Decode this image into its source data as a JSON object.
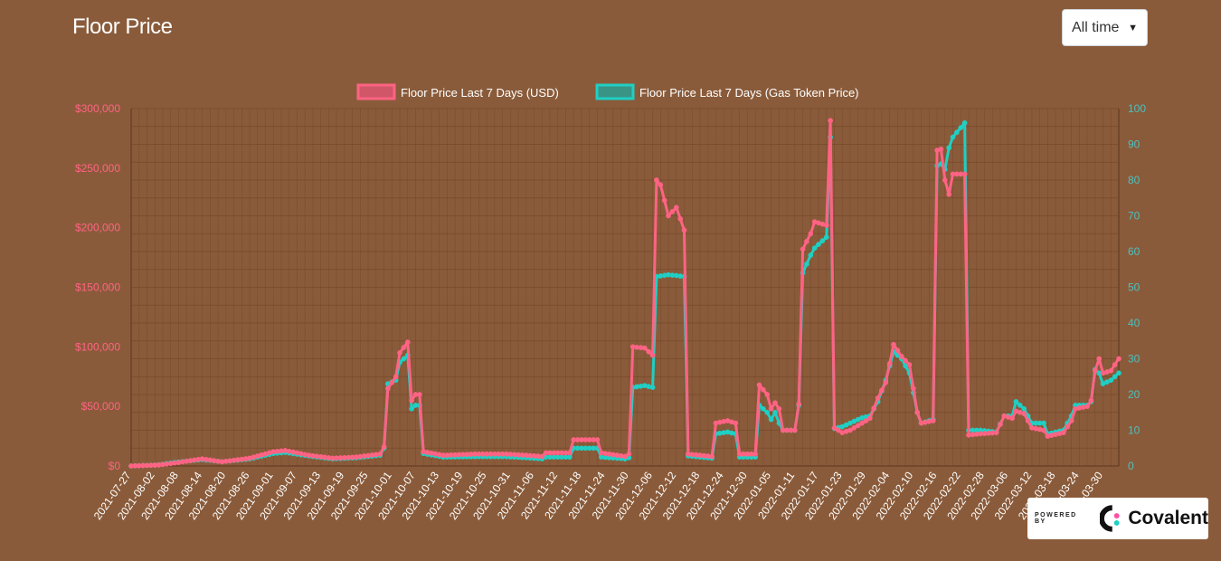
{
  "header": {
    "title": "Floor Price"
  },
  "range_select": {
    "value": "All time"
  },
  "badge": {
    "powered_by": "POWERED BY",
    "brand": "Covalent"
  },
  "colors": {
    "usd_line": "#ff6384",
    "gas_line": "#1fcfc4",
    "left_axis_text": "#ff6384",
    "right_axis_text": "#4bc0c0",
    "background": "#8a5b3a",
    "grid": "#6f4326"
  },
  "icons": {
    "select_chevron": "chevron-down-icon",
    "brand_logo": "covalent-logo-icon"
  },
  "chart_data": {
    "type": "line",
    "title": "",
    "legend_position": "top-center",
    "grid": true,
    "x_labels": [
      "2021-07-27",
      "2021-08-02",
      "2021-08-08",
      "2021-08-14",
      "2021-08-20",
      "2021-08-26",
      "2021-09-01",
      "2021-09-07",
      "2021-09-13",
      "2021-09-19",
      "2021-09-25",
      "2021-10-01",
      "2021-10-07",
      "2021-10-13",
      "2021-10-19",
      "2021-10-25",
      "2021-10-31",
      "2021-11-06",
      "2021-11-12",
      "2021-11-18",
      "2021-11-24",
      "2021-11-30",
      "2021-12-06",
      "2021-12-12",
      "2021-12-18",
      "2021-12-24",
      "2021-12-30",
      "2022-01-05",
      "2022-01-11",
      "2022-01-17",
      "2022-01-23",
      "2022-01-29",
      "2022-02-04",
      "2022-02-10",
      "2022-02-16",
      "2022-02-22",
      "2022-02-28",
      "2022-03-06",
      "2022-03-12",
      "2022-03-18",
      "2022-03-24",
      "2022-03-30"
    ],
    "left_axis": {
      "ylim": [
        0,
        300000
      ],
      "ticks": [
        "$0",
        "$50,000",
        "$100,000",
        "$150,000",
        "$200,000",
        "$250,000",
        "$300,000"
      ]
    },
    "right_axis": {
      "ylim": [
        0,
        100
      ],
      "ticks": [
        "0",
        "10",
        "20",
        "30",
        "40",
        "50",
        "60",
        "70",
        "80",
        "90",
        "100"
      ]
    },
    "series": [
      {
        "name": "Floor Price Last 7 Days (USD)",
        "axis": "left",
        "keypoints": [
          [
            "2021-07-27",
            0
          ],
          [
            "2021-08-03",
            800
          ],
          [
            "2021-08-07",
            2500
          ],
          [
            "2021-08-14",
            6000
          ],
          [
            "2021-08-19",
            3500
          ],
          [
            "2021-08-26",
            6500
          ],
          [
            "2021-09-01",
            12000
          ],
          [
            "2021-09-04",
            13000
          ],
          [
            "2021-09-10",
            9000
          ],
          [
            "2021-09-16",
            6500
          ],
          [
            "2021-09-22",
            7500
          ],
          [
            "2021-09-28",
            10000
          ],
          [
            "2021-09-29",
            16000
          ],
          [
            "2021-09-30",
            65000
          ],
          [
            "2021-10-02",
            75000
          ],
          [
            "2021-10-03",
            95000
          ],
          [
            "2021-10-05",
            104000
          ],
          [
            "2021-10-06",
            55000
          ],
          [
            "2021-10-07",
            60000
          ],
          [
            "2021-10-08",
            60000
          ],
          [
            "2021-10-09",
            12000
          ],
          [
            "2021-10-14",
            9000
          ],
          [
            "2021-10-22",
            10000
          ],
          [
            "2021-10-30",
            10000
          ],
          [
            "2021-11-04",
            9000
          ],
          [
            "2021-11-08",
            8000
          ],
          [
            "2021-11-09",
            11000
          ],
          [
            "2021-11-15",
            11000
          ],
          [
            "2021-11-16",
            22000
          ],
          [
            "2021-11-22",
            22000
          ],
          [
            "2021-11-23",
            11000
          ],
          [
            "2021-11-29",
            8000
          ],
          [
            "2021-11-30",
            10000
          ],
          [
            "2021-12-01",
            100000
          ],
          [
            "2021-12-04",
            99000
          ],
          [
            "2021-12-06",
            93000
          ],
          [
            "2021-12-07",
            240000
          ],
          [
            "2021-12-08",
            236000
          ],
          [
            "2021-12-10",
            210000
          ],
          [
            "2021-12-12",
            217000
          ],
          [
            "2021-12-14",
            198000
          ],
          [
            "2021-12-15",
            10000
          ],
          [
            "2021-12-21",
            8000
          ],
          [
            "2021-12-22",
            36000
          ],
          [
            "2021-12-25",
            38000
          ],
          [
            "2021-12-27",
            36000
          ],
          [
            "2021-12-28",
            10000
          ],
          [
            "2022-01-01",
            10000
          ],
          [
            "2022-01-02",
            68000
          ],
          [
            "2022-01-04",
            60000
          ],
          [
            "2022-01-05",
            48000
          ],
          [
            "2022-01-06",
            53000
          ],
          [
            "2022-01-07",
            48000
          ],
          [
            "2022-01-08",
            30000
          ],
          [
            "2022-01-11",
            30000
          ],
          [
            "2022-01-12",
            52000
          ],
          [
            "2022-01-13",
            182000
          ],
          [
            "2022-01-15",
            195000
          ],
          [
            "2022-01-16",
            205000
          ],
          [
            "2022-01-19",
            202000
          ],
          [
            "2022-01-20",
            290000
          ],
          [
            "2022-01-21",
            32000
          ],
          [
            "2022-01-23",
            28000
          ],
          [
            "2022-01-25",
            30000
          ],
          [
            "2022-01-28",
            36000
          ],
          [
            "2022-01-30",
            40000
          ],
          [
            "2022-02-01",
            57000
          ],
          [
            "2022-02-03",
            70000
          ],
          [
            "2022-02-05",
            102000
          ],
          [
            "2022-02-07",
            92000
          ],
          [
            "2022-02-09",
            85000
          ],
          [
            "2022-02-11",
            45000
          ],
          [
            "2022-02-12",
            36000
          ],
          [
            "2022-02-15",
            38000
          ],
          [
            "2022-02-16",
            265000
          ],
          [
            "2022-02-17",
            266000
          ],
          [
            "2022-02-18",
            240000
          ],
          [
            "2022-02-19",
            228000
          ],
          [
            "2022-02-20",
            245000
          ],
          [
            "2022-02-23",
            245000
          ],
          [
            "2022-02-24",
            26000
          ],
          [
            "2022-02-27",
            27000
          ],
          [
            "2022-03-03",
            28000
          ],
          [
            "2022-03-05",
            42000
          ],
          [
            "2022-03-07",
            40000
          ],
          [
            "2022-03-08",
            46000
          ],
          [
            "2022-03-10",
            44000
          ],
          [
            "2022-03-12",
            32000
          ],
          [
            "2022-03-15",
            30000
          ],
          [
            "2022-03-16",
            25000
          ],
          [
            "2022-03-20",
            28000
          ],
          [
            "2022-03-22",
            38000
          ],
          [
            "2022-03-23",
            48000
          ],
          [
            "2022-03-26",
            50000
          ],
          [
            "2022-03-27",
            55000
          ],
          [
            "2022-03-28",
            80000
          ],
          [
            "2022-03-29",
            90000
          ],
          [
            "2022-03-30",
            78000
          ],
          [
            "2022-04-01",
            80000
          ],
          [
            "2022-04-03",
            90000
          ]
        ]
      },
      {
        "name": "Floor Price Last 7 Days (Gas Token Price)",
        "axis": "right",
        "keypoints": [
          [
            "2021-07-27",
            0
          ],
          [
            "2021-08-03",
            0.3
          ],
          [
            "2021-08-07",
            1
          ],
          [
            "2021-08-14",
            1.8
          ],
          [
            "2021-08-19",
            1.2
          ],
          [
            "2021-08-26",
            2
          ],
          [
            "2021-09-01",
            3.5
          ],
          [
            "2021-09-04",
            3.8
          ],
          [
            "2021-09-10",
            2.8
          ],
          [
            "2021-09-16",
            2
          ],
          [
            "2021-09-22",
            2.3
          ],
          [
            "2021-09-28",
            3
          ],
          [
            "2021-09-29",
            5
          ],
          [
            "2021-09-30",
            23
          ],
          [
            "2021-10-02",
            24
          ],
          [
            "2021-10-03",
            29
          ],
          [
            "2021-10-05",
            31
          ],
          [
            "2021-10-06",
            16
          ],
          [
            "2021-10-07",
            17
          ],
          [
            "2021-10-08",
            17
          ],
          [
            "2021-10-09",
            3.5
          ],
          [
            "2021-10-14",
            2.5
          ],
          [
            "2021-10-22",
            2.6
          ],
          [
            "2021-10-30",
            2.6
          ],
          [
            "2021-11-04",
            2.3
          ],
          [
            "2021-11-08",
            2
          ],
          [
            "2021-11-09",
            2.5
          ],
          [
            "2021-11-15",
            2.5
          ],
          [
            "2021-11-16",
            5
          ],
          [
            "2021-11-22",
            5
          ],
          [
            "2021-11-23",
            2.5
          ],
          [
            "2021-11-29",
            2
          ],
          [
            "2021-11-30",
            2.3
          ],
          [
            "2021-12-01",
            22
          ],
          [
            "2021-12-04",
            22.5
          ],
          [
            "2021-12-06",
            22
          ],
          [
            "2021-12-07",
            53
          ],
          [
            "2021-12-10",
            53.5
          ],
          [
            "2021-12-12",
            53.3
          ],
          [
            "2021-12-14",
            53
          ],
          [
            "2021-12-15",
            2.8
          ],
          [
            "2021-12-21",
            2.2
          ],
          [
            "2021-12-22",
            9
          ],
          [
            "2021-12-25",
            9.5
          ],
          [
            "2021-12-27",
            9
          ],
          [
            "2021-12-28",
            2.5
          ],
          [
            "2022-01-01",
            2.5
          ],
          [
            "2022-01-02",
            17
          ],
          [
            "2022-01-04",
            15
          ],
          [
            "2022-01-05",
            13
          ],
          [
            "2022-01-06",
            15
          ],
          [
            "2022-01-07",
            12
          ],
          [
            "2022-01-08",
            10
          ],
          [
            "2022-01-11",
            10
          ],
          [
            "2022-01-12",
            17
          ],
          [
            "2022-01-13",
            54
          ],
          [
            "2022-01-15",
            59
          ],
          [
            "2022-01-16",
            61
          ],
          [
            "2022-01-19",
            64
          ],
          [
            "2022-01-20",
            92
          ],
          [
            "2022-01-21",
            10.5
          ],
          [
            "2022-01-23",
            11
          ],
          [
            "2022-01-25",
            12
          ],
          [
            "2022-01-28",
            13.5
          ],
          [
            "2022-01-30",
            14
          ],
          [
            "2022-02-01",
            18
          ],
          [
            "2022-02-03",
            24
          ],
          [
            "2022-02-05",
            32
          ],
          [
            "2022-02-07",
            30
          ],
          [
            "2022-02-09",
            26
          ],
          [
            "2022-02-11",
            15
          ],
          [
            "2022-02-12",
            12
          ],
          [
            "2022-02-15",
            13
          ],
          [
            "2022-02-16",
            84
          ],
          [
            "2022-02-17",
            84.5
          ],
          [
            "2022-02-18",
            83
          ],
          [
            "2022-02-19",
            89
          ],
          [
            "2022-02-20",
            92
          ],
          [
            "2022-02-23",
            96
          ],
          [
            "2022-02-24",
            10
          ],
          [
            "2022-02-27",
            10
          ],
          [
            "2022-03-03",
            9.5
          ],
          [
            "2022-03-05",
            14
          ],
          [
            "2022-03-07",
            14
          ],
          [
            "2022-03-08",
            18
          ],
          [
            "2022-03-10",
            16
          ],
          [
            "2022-03-12",
            12
          ],
          [
            "2022-03-15",
            12
          ],
          [
            "2022-03-16",
            9
          ],
          [
            "2022-03-20",
            10
          ],
          [
            "2022-03-22",
            14
          ],
          [
            "2022-03-23",
            17
          ],
          [
            "2022-03-26",
            17
          ],
          [
            "2022-03-27",
            18
          ],
          [
            "2022-03-28",
            27
          ],
          [
            "2022-03-29",
            26
          ],
          [
            "2022-03-30",
            23
          ],
          [
            "2022-04-01",
            24
          ],
          [
            "2022-04-03",
            26
          ]
        ]
      }
    ]
  }
}
